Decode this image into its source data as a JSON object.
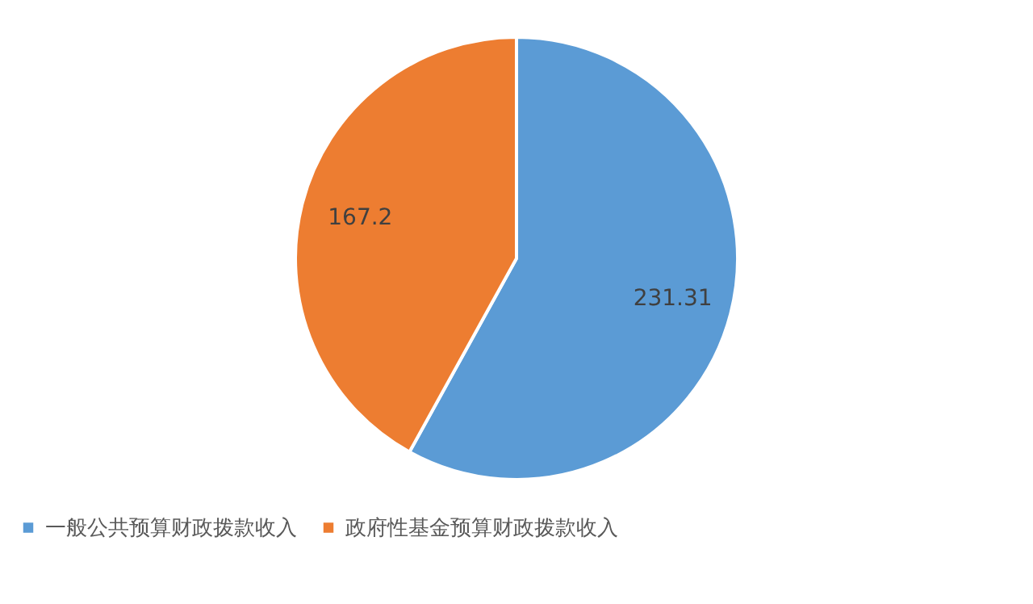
{
  "chart_data": {
    "type": "pie",
    "categories": [
      "一般公共预算财政拨款收入",
      "政府性基金预算财政拨款收入"
    ],
    "values": [
      231.31,
      167.2
    ],
    "colors": [
      "#5b9bd5",
      "#ed7d31"
    ],
    "data_labels": true,
    "legend": "bottom"
  }
}
